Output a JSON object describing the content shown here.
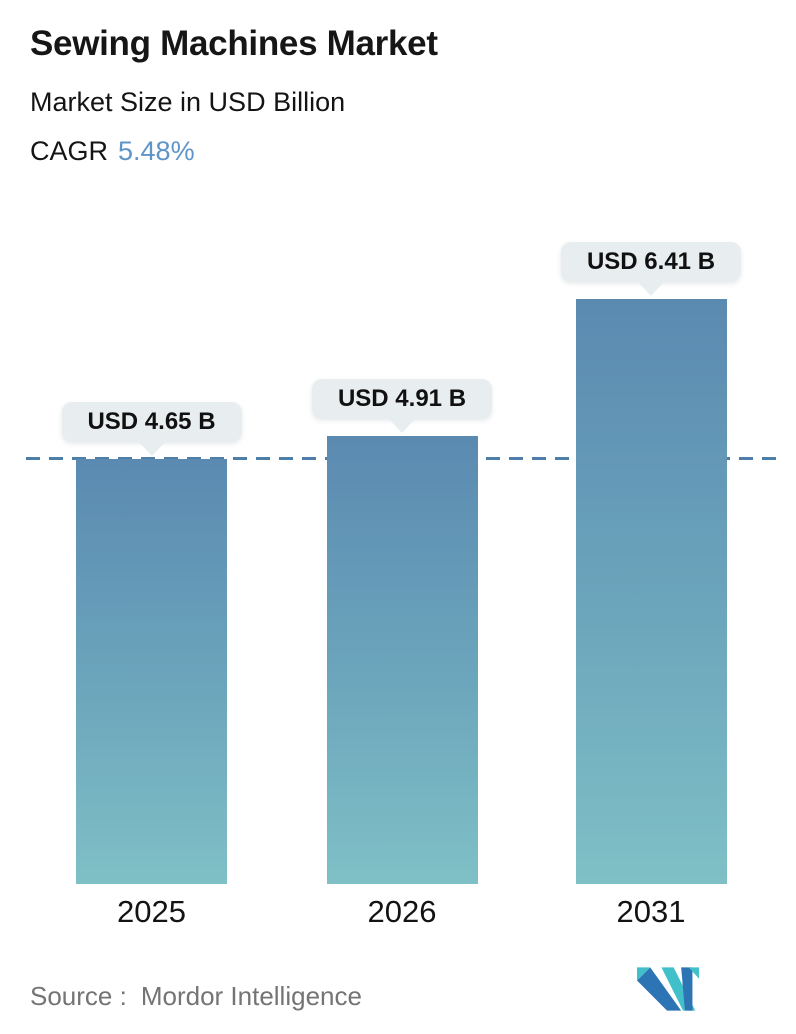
{
  "header": {
    "title": "Sewing Machines Market",
    "subtitle": "Market Size in USD Billion",
    "cagr_label": "CAGR",
    "cagr_value": "5.48%"
  },
  "chart_data": {
    "type": "bar",
    "categories": [
      "2025",
      "2026",
      "2031"
    ],
    "values": [
      4.65,
      4.91,
      6.41
    ],
    "value_labels": [
      "USD 4.65 B",
      "USD 4.91 B",
      "USD 6.41 B"
    ],
    "title": "Sewing Machines Market",
    "subtitle": "Market Size in USD Billion",
    "unit": "USD Billion",
    "xlabel": "",
    "ylabel": "",
    "grid": false,
    "legend": false,
    "axes_hidden": true,
    "reference_line": {
      "at_value": 4.65,
      "style": "dashed",
      "color": "#4d7ea9"
    },
    "colors": {
      "bar_gradient_top": "#5b8ab1",
      "bar_gradient_bottom": "#7fc0c6",
      "label_bubble_bg": "#e8eeef",
      "cagr_accent": "#5e94c7",
      "logo_blue": "#2d74b5",
      "logo_teal": "#41c0c9"
    }
  },
  "footer": {
    "source_label": "Source :",
    "source_name": "Mordor Intelligence",
    "logo": "mordor-intelligence-logo"
  }
}
